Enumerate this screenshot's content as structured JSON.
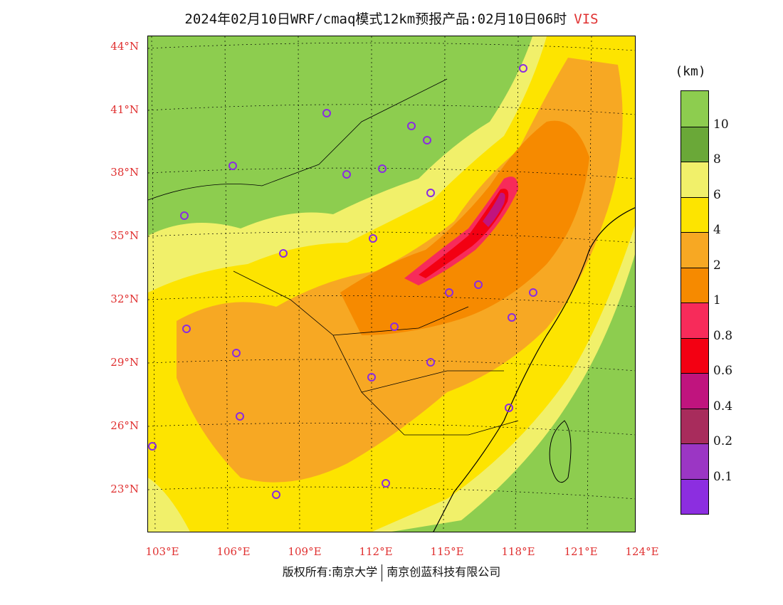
{
  "title": {
    "text": "2024年02月10日WRF/cmaq模式12km预报产品:02月10日06时",
    "variable": "VIS"
  },
  "axes": {
    "lat_labels": [
      "44°N",
      "41°N",
      "38°N",
      "35°N",
      "32°N",
      "29°N",
      "26°N",
      "23°N"
    ],
    "lon_labels": [
      "103°E",
      "106°E",
      "109°E",
      "112°E",
      "115°E",
      "118°E",
      "121°E",
      "124°E"
    ]
  },
  "colorbar": {
    "unit": "(km)",
    "levels": [
      "10",
      "8",
      "6",
      "4",
      "2",
      "1",
      "0.8",
      "0.6",
      "0.4",
      "0.2",
      "0.1"
    ],
    "colors": [
      "#8dcd4f",
      "#6aa838",
      "#f1f06a",
      "#fde400",
      "#f7a823",
      "#f68a00",
      "#f72b5a",
      "#f30012",
      "#c0147e",
      "#a82c5c",
      "#9b36c4",
      "#8c2ee0"
    ]
  },
  "footer": {
    "left": "版权所有:南京大学",
    "right": "南京创蓝科技有限公司"
  },
  "colors": {
    "ocean": "#8dcd4f",
    "land_clear": "#8dcd4f",
    "station_marker": "#8a2be2",
    "label_red": "#e03030"
  }
}
